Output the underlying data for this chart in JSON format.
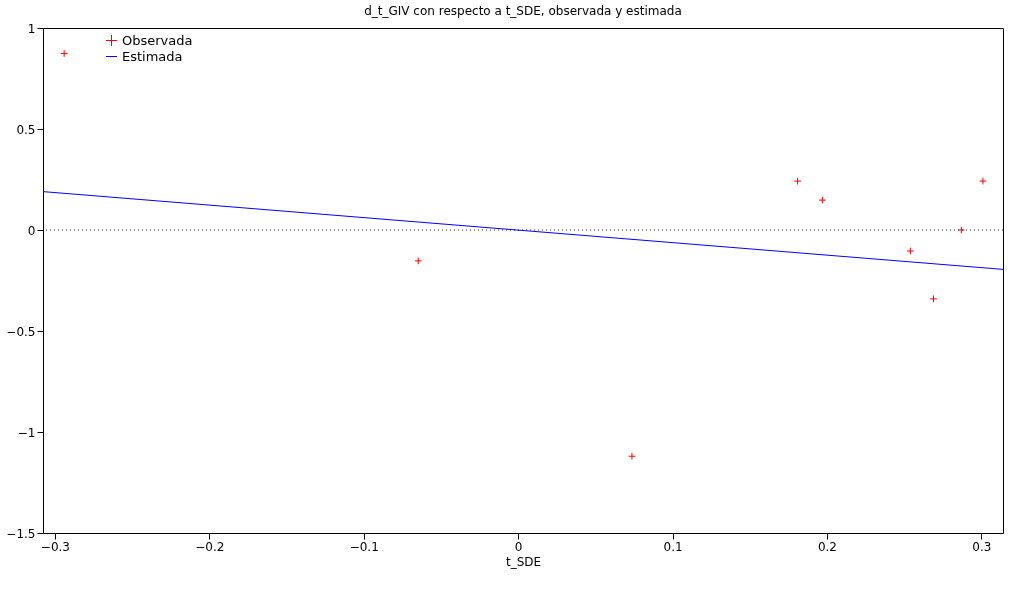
{
  "chart_data": {
    "type": "scatter",
    "title": "d_t_GIV con respecto a t_SDE, observada y estimada",
    "xlabel": "t_SDE",
    "xlim": [
      -0.3077,
      0.314
    ],
    "ylim": [
      -1.5,
      1
    ],
    "xticks": [
      -0.3,
      -0.2,
      -0.1,
      0,
      0.1,
      0.2,
      0.3
    ],
    "yticks": [
      -1.5,
      -1,
      -0.5,
      0,
      0.5,
      1
    ],
    "grid": false,
    "legend": "top left",
    "series": [
      {
        "name": "Observada",
        "marker": "cross",
        "color": "#ff0000",
        "x": [
          -0.294,
          -0.0647,
          0.0737,
          0.181,
          0.197,
          0.254,
          0.269,
          0.287,
          0.301
        ],
        "values": [
          0.874,
          -0.153,
          -1.12,
          0.242,
          0.148,
          -0.104,
          -0.341,
          0.0,
          0.242
        ]
      },
      {
        "name": "Estimada",
        "type": "line",
        "marker": "none",
        "color": "#0000ff",
        "line_style": "solid",
        "x": [
          -0.3077,
          0.314
        ],
        "values": [
          0.19,
          -0.195
        ]
      }
    ],
    "ref_lines": [
      {
        "axis": "y",
        "value": 0,
        "label": null,
        "color": "#000000",
        "line_style": "dotted"
      }
    ]
  }
}
